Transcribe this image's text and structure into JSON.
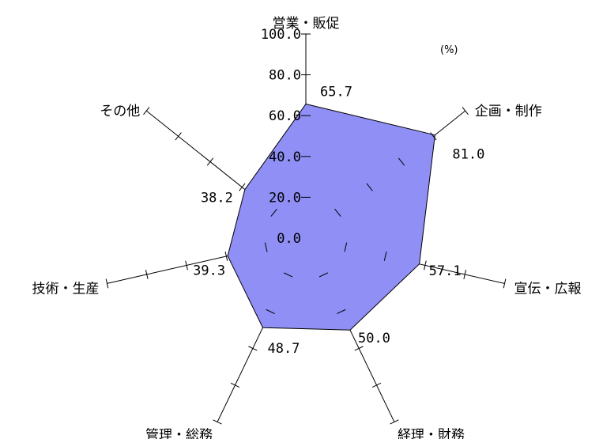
{
  "chart_data": {
    "type": "radar",
    "unit_label": "(%)",
    "range": [
      0,
      100
    ],
    "tick_values": [
      0,
      20,
      40,
      60,
      80,
      100
    ],
    "tick_labels": [
      "0.0",
      "20.0",
      "40.0",
      "60.0",
      "80.0",
      "100.0"
    ],
    "categories": [
      "営業・販促",
      "企画・制作",
      "宣伝・広報",
      "経理・財務",
      "管理・総務",
      "技術・生産",
      "その他"
    ],
    "values": [
      65.7,
      81.0,
      57.1,
      50.0,
      48.7,
      39.3,
      38.2
    ],
    "value_labels": [
      "65.7",
      "81.0",
      "57.1",
      "50.0",
      "48.7",
      "39.3",
      "38.2"
    ],
    "fill_color": "#8f8ff6",
    "line_color": "#000000"
  }
}
